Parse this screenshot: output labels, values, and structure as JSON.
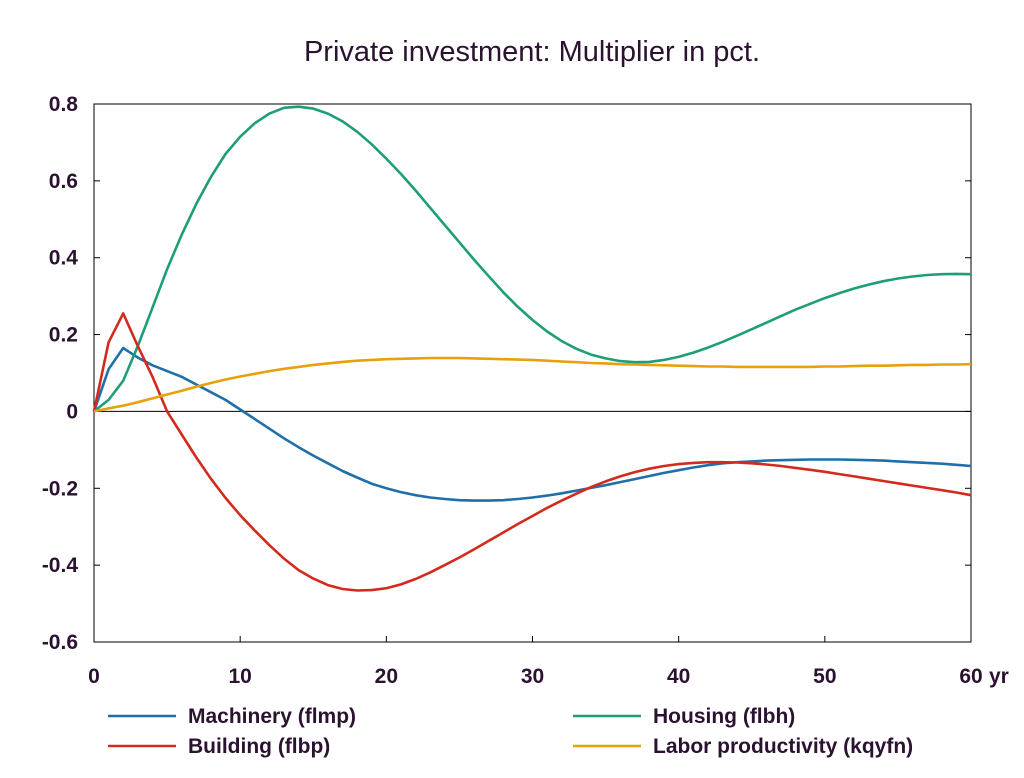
{
  "chart_data": {
    "type": "line",
    "title": "Private investment: Multiplier in pct.",
    "xlabel": "",
    "ylabel": "",
    "x_unit_label": "yr",
    "xlim": [
      0,
      60
    ],
    "ylim": [
      -0.6,
      0.8
    ],
    "x_ticks": [
      0,
      10,
      20,
      30,
      40,
      50,
      60
    ],
    "x_tick_labels": [
      "0",
      "10",
      "20",
      "30",
      "40",
      "50",
      "60"
    ],
    "y_ticks": [
      -0.6,
      -0.4,
      -0.2,
      0,
      0.2,
      0.4,
      0.6,
      0.8
    ],
    "y_tick_labels": [
      "-0.6",
      "-0.4",
      "-0.2",
      "0",
      "0.2",
      "0.4",
      "0.6",
      "0.8"
    ],
    "grid": false,
    "zero_line": true,
    "legend_position": "bottom",
    "x": [
      0,
      1,
      2,
      3,
      4,
      5,
      6,
      7,
      8,
      9,
      10,
      11,
      12,
      13,
      14,
      15,
      16,
      17,
      18,
      19,
      20,
      21,
      22,
      23,
      24,
      25,
      26,
      27,
      28,
      29,
      30,
      31,
      32,
      33,
      34,
      35,
      36,
      37,
      38,
      39,
      40,
      41,
      42,
      43,
      44,
      45,
      46,
      47,
      48,
      49,
      50,
      51,
      52,
      53,
      54,
      55,
      56,
      57,
      58,
      59,
      60
    ],
    "series": [
      {
        "name": "Machinery (flmp)",
        "color": "#1f6fa8",
        "values": [
          0,
          0.11,
          0.165,
          0.14,
          0.12,
          0.105,
          0.09,
          0.07,
          0.05,
          0.03,
          0.005,
          -0.02,
          -0.045,
          -0.07,
          -0.093,
          -0.115,
          -0.135,
          -0.155,
          -0.172,
          -0.188,
          -0.2,
          -0.21,
          -0.218,
          -0.224,
          -0.228,
          -0.231,
          -0.232,
          -0.232,
          -0.231,
          -0.228,
          -0.224,
          -0.219,
          -0.213,
          -0.206,
          -0.199,
          -0.192,
          -0.184,
          -0.176,
          -0.168,
          -0.16,
          -0.153,
          -0.146,
          -0.14,
          -0.135,
          -0.132,
          -0.13,
          -0.128,
          -0.127,
          -0.126,
          -0.125,
          -0.125,
          -0.125,
          -0.126,
          -0.127,
          -0.128,
          -0.13,
          -0.132,
          -0.134,
          -0.136,
          -0.139,
          -0.142
        ]
      },
      {
        "name": "Housing (flbh)",
        "color": "#1e9e78",
        "values": [
          0,
          0.03,
          0.08,
          0.17,
          0.27,
          0.37,
          0.46,
          0.54,
          0.61,
          0.67,
          0.715,
          0.75,
          0.775,
          0.79,
          0.793,
          0.788,
          0.775,
          0.755,
          0.728,
          0.695,
          0.658,
          0.618,
          0.575,
          0.53,
          0.485,
          0.44,
          0.395,
          0.352,
          0.31,
          0.272,
          0.238,
          0.208,
          0.183,
          0.163,
          0.148,
          0.138,
          0.131,
          0.128,
          0.129,
          0.134,
          0.142,
          0.153,
          0.166,
          0.181,
          0.197,
          0.214,
          0.231,
          0.248,
          0.265,
          0.28,
          0.295,
          0.308,
          0.32,
          0.33,
          0.339,
          0.346,
          0.351,
          0.355,
          0.357,
          0.358,
          0.357
        ]
      },
      {
        "name": "Building (flbp)",
        "color": "#d42a1e",
        "values": [
          0,
          0.18,
          0.255,
          0.17,
          0.09,
          0.0,
          -0.06,
          -0.12,
          -0.175,
          -0.225,
          -0.27,
          -0.31,
          -0.348,
          -0.383,
          -0.413,
          -0.435,
          -0.452,
          -0.462,
          -0.466,
          -0.465,
          -0.46,
          -0.45,
          -0.436,
          -0.419,
          -0.4,
          -0.38,
          -0.359,
          -0.337,
          -0.315,
          -0.293,
          -0.272,
          -0.251,
          -0.232,
          -0.214,
          -0.197,
          -0.182,
          -0.169,
          -0.158,
          -0.149,
          -0.142,
          -0.137,
          -0.134,
          -0.132,
          -0.132,
          -0.133,
          -0.135,
          -0.138,
          -0.142,
          -0.147,
          -0.152,
          -0.157,
          -0.163,
          -0.169,
          -0.175,
          -0.181,
          -0.187,
          -0.193,
          -0.199,
          -0.205,
          -0.211,
          -0.218
        ]
      },
      {
        "name": "Labor productivity (kqyfn)",
        "color": "#e6a10c",
        "values": [
          0,
          0.008,
          0.015,
          0.024,
          0.034,
          0.044,
          0.054,
          0.064,
          0.074,
          0.083,
          0.091,
          0.098,
          0.105,
          0.111,
          0.116,
          0.121,
          0.125,
          0.129,
          0.132,
          0.134,
          0.136,
          0.137,
          0.138,
          0.139,
          0.139,
          0.139,
          0.138,
          0.137,
          0.136,
          0.135,
          0.134,
          0.132,
          0.13,
          0.128,
          0.126,
          0.125,
          0.123,
          0.122,
          0.121,
          0.12,
          0.119,
          0.118,
          0.117,
          0.117,
          0.116,
          0.116,
          0.116,
          0.116,
          0.116,
          0.116,
          0.117,
          0.117,
          0.118,
          0.119,
          0.119,
          0.12,
          0.121,
          0.121,
          0.122,
          0.122,
          0.123
        ]
      }
    ]
  }
}
